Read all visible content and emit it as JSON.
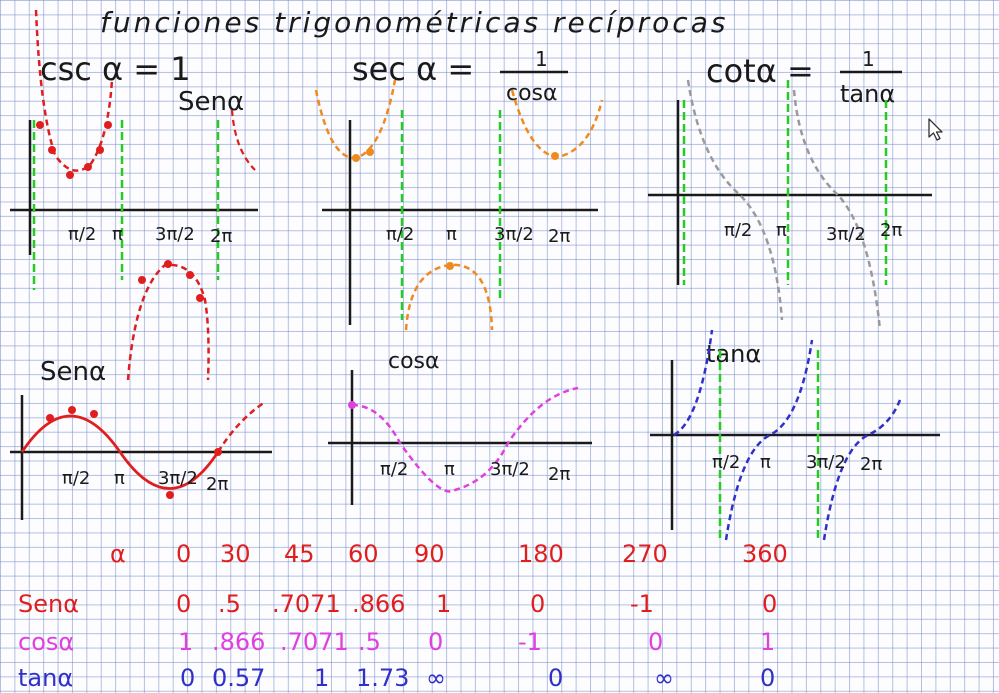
{
  "page_title": "funciones trigonométricas recíprocas",
  "colors": {
    "ink_black": "#1a1a1a",
    "red": "#e01e1e",
    "orange": "#f08a1c",
    "gray": "#9a9a9a",
    "green": "#22cc22",
    "magenta": "#e040e0",
    "blue": "#3030c8",
    "grid": "#7b8cc8"
  },
  "graphs": {
    "csc": {
      "title": "csc α = 1",
      "denominator": "Senα",
      "ticks": [
        "π/2",
        "π",
        "3π/2",
        "2π"
      ]
    },
    "sec": {
      "title": "sec α = ",
      "numerator": "1",
      "denominator": "cosα",
      "ticks": [
        "π/2",
        "π",
        "3π/2",
        "2π"
      ]
    },
    "cot": {
      "title": "cotα = ",
      "numerator": "1",
      "denominator": "tanα",
      "ticks": [
        "π/2",
        "π",
        "3π/2",
        "2π"
      ]
    },
    "sin": {
      "title": "Senα",
      "ticks": [
        "π/2",
        "π",
        "3π/2",
        "2π"
      ]
    },
    "cos": {
      "title": "cosα",
      "ticks": [
        "π/2",
        "π",
        "3π/2",
        "2π"
      ]
    },
    "tan": {
      "title": "tanα",
      "ticks": [
        "π/2",
        "π",
        "3π/2",
        "2π"
      ]
    }
  },
  "table": {
    "header_label": "α",
    "angles": [
      "0",
      "30",
      "45",
      "60",
      "90",
      "180",
      "270",
      "360"
    ],
    "rows": [
      {
        "label": "Senα",
        "values": [
          "0",
          ".5",
          ".7071",
          ".866",
          "1",
          "0",
          "-1",
          "0"
        ]
      },
      {
        "label": "cosα",
        "values": [
          "1",
          ".866",
          ".7071",
          ".5",
          "0",
          "-1",
          "0",
          "1"
        ]
      },
      {
        "label": "tanα",
        "values": [
          "0",
          "0.57",
          "1",
          "1.73",
          "∞",
          "0",
          "∞",
          "0"
        ]
      }
    ]
  },
  "icons": {
    "cursor": "mouse-pointer-icon"
  }
}
